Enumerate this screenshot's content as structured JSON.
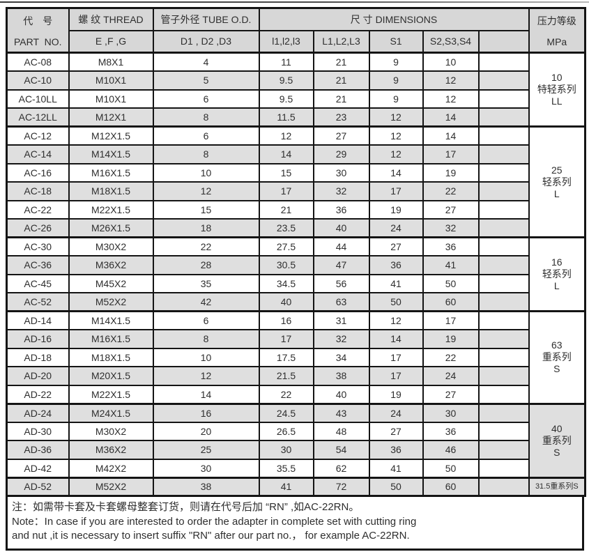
{
  "colors": {
    "header_bg": "#d7d7d7",
    "row_alt_bg": "#dfdfdf",
    "border": "#141414",
    "text": "#2e2e2e"
  },
  "table": {
    "header": {
      "part_no_cn": "代　号",
      "part_no_en": "PART NO.",
      "thread_cn": "螺 纹 THREAD",
      "thread_sub": "E ,F ,G",
      "tube_od_cn": "管子外径 TUBE O.D.",
      "tube_od_sub": "D1 , D2 ,D3",
      "dimensions": "尺 寸  DIMENSIONS",
      "dim_sub": [
        "l1,l2,l3",
        "L1,L2,L3",
        "S1",
        "S2,S3,S4",
        ""
      ],
      "pressure_cn": "压力等级",
      "pressure_unit": "MPa"
    },
    "columns": [
      "part_no",
      "thread",
      "tube_od",
      "l1_l2_l3",
      "L1_L2_L3",
      "S1",
      "S2_S3_S4",
      "extra"
    ],
    "groups": [
      {
        "pressure": [
          "10",
          "特轻系列",
          "LL"
        ],
        "rows": [
          [
            "AC-08",
            "M8X1",
            "4",
            "11",
            "21",
            "9",
            "10",
            ""
          ],
          [
            "AC-10",
            "M10X1",
            "5",
            "9.5",
            "21",
            "9",
            "12",
            ""
          ],
          [
            "AC-10LL",
            "M10X1",
            "6",
            "9.5",
            "21",
            "9",
            "12",
            ""
          ],
          [
            "AC-12LL",
            "M12X1",
            "8",
            "11.5",
            "23",
            "12",
            "14",
            ""
          ]
        ]
      },
      {
        "pressure": [
          "25",
          "轻系列",
          "L"
        ],
        "rows": [
          [
            "AC-12",
            "M12X1.5",
            "6",
            "12",
            "27",
            "12",
            "14",
            ""
          ],
          [
            "AC-14",
            "M14X1.5",
            "8",
            "14",
            "29",
            "12",
            "17",
            ""
          ],
          [
            "AC-16",
            "M16X1.5",
            "10",
            "15",
            "30",
            "14",
            "19",
            ""
          ],
          [
            "AC-18",
            "M18X1.5",
            "12",
            "17",
            "32",
            "17",
            "22",
            ""
          ],
          [
            "AC-22",
            "M22X1.5",
            "15",
            "21",
            "36",
            "19",
            "27",
            ""
          ],
          [
            "AC-26",
            "M26X1.5",
            "18",
            "23.5",
            "40",
            "24",
            "32",
            ""
          ]
        ]
      },
      {
        "pressure": [
          "16",
          "轻系列",
          "L"
        ],
        "rows": [
          [
            "AC-30",
            "M30X2",
            "22",
            "27.5",
            "44",
            "27",
            "36",
            ""
          ],
          [
            "AC-36",
            "M36X2",
            "28",
            "30.5",
            "47",
            "36",
            "41",
            ""
          ],
          [
            "AC-45",
            "M45X2",
            "35",
            "34.5",
            "56",
            "41",
            "50",
            ""
          ],
          [
            "AC-52",
            "M52X2",
            "42",
            "40",
            "63",
            "50",
            "60",
            ""
          ]
        ]
      },
      {
        "pressure": [
          "63",
          "重系列",
          "S"
        ],
        "rows": [
          [
            "AD-14",
            "M14X1.5",
            "6",
            "16",
            "31",
            "12",
            "17",
            ""
          ],
          [
            "AD-16",
            "M16X1.5",
            "8",
            "17",
            "32",
            "14",
            "19",
            ""
          ],
          [
            "AD-18",
            "M18X1.5",
            "10",
            "17.5",
            "34",
            "17",
            "22",
            ""
          ],
          [
            "AD-20",
            "M20X1.5",
            "12",
            "21.5",
            "38",
            "17",
            "24",
            ""
          ],
          [
            "AD-22",
            "M22X1.5",
            "14",
            "22",
            "40",
            "19",
            "27",
            ""
          ]
        ]
      },
      {
        "pressure": [
          "40",
          "重系列",
          "S"
        ],
        "rows": [
          [
            "AD-24",
            "M24X1.5",
            "16",
            "24.5",
            "43",
            "24",
            "30",
            ""
          ],
          [
            "AD-30",
            "M30X2",
            "20",
            "26.5",
            "48",
            "27",
            "36",
            ""
          ],
          [
            "AD-36",
            "M36X2",
            "25",
            "30",
            "54",
            "36",
            "46",
            ""
          ],
          [
            "AD-42",
            "M42X2",
            "30",
            "35.5",
            "62",
            "41",
            "50",
            ""
          ]
        ]
      },
      {
        "pressure": [
          "31.5重系列S"
        ],
        "small": true,
        "rows": [
          [
            "AD-52",
            "M52X2",
            "38",
            "41",
            "72",
            "50",
            "60",
            ""
          ]
        ]
      }
    ]
  },
  "note": {
    "line1": "注：如需带卡套及卡套螺母整套订货，则请在代号后加 “RN” ,如AC-22RN。",
    "line2": "Note：In case if you are interested to order the adapter in complete set with cutting ring",
    "line3": "and nut ,it is necessary to insert suffix \"RN\" after our part no.， for example AC-22RN."
  }
}
